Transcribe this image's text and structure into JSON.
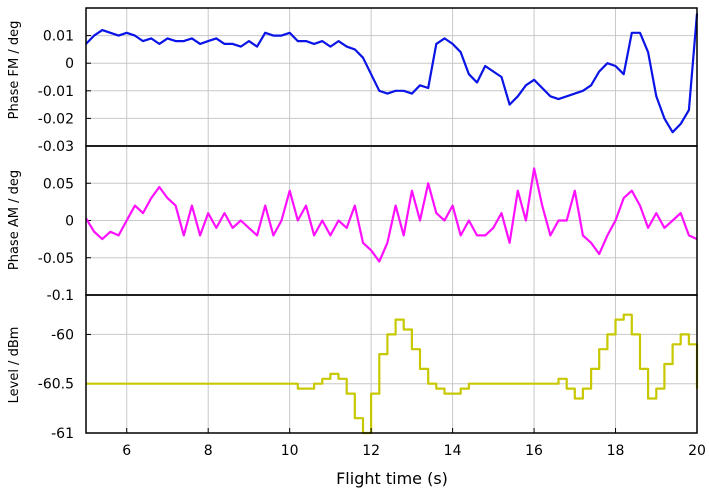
{
  "chart_data": {
    "type": "line",
    "x_label": "Flight time (s)",
    "x_range": [
      5,
      20
    ],
    "x_ticks": [
      "6",
      "8",
      "10",
      "12",
      "14",
      "16",
      "18",
      "20"
    ],
    "grid": true,
    "panels": [
      {
        "ylabel": "Phase FM / deg",
        "ylim": [
          -0.03,
          0.02
        ],
        "yticks": [
          "0.01",
          "0",
          "-0.01",
          "-0.02",
          "-0.03"
        ],
        "color": "#0a14e6",
        "series": {
          "x": [
            5.0,
            5.2,
            5.4,
            5.6,
            5.8,
            6.0,
            6.2,
            6.4,
            6.6,
            6.8,
            7.0,
            7.2,
            7.4,
            7.6,
            7.8,
            8.0,
            8.2,
            8.4,
            8.6,
            8.8,
            9.0,
            9.2,
            9.4,
            9.6,
            9.8,
            10.0,
            10.2,
            10.4,
            10.6,
            10.8,
            11.0,
            11.2,
            11.4,
            11.6,
            11.8,
            12.0,
            12.2,
            12.4,
            12.6,
            12.8,
            13.0,
            13.2,
            13.4,
            13.6,
            13.8,
            14.0,
            14.2,
            14.4,
            14.6,
            14.8,
            15.0,
            15.2,
            15.4,
            15.6,
            15.8,
            16.0,
            16.2,
            16.4,
            16.6,
            16.8,
            17.0,
            17.2,
            17.4,
            17.6,
            17.8,
            18.0,
            18.2,
            18.4,
            18.6,
            18.8,
            19.0,
            19.2,
            19.4,
            19.6,
            19.8,
            20.0
          ],
          "y": [
            0.007,
            0.01,
            0.012,
            0.011,
            0.01,
            0.011,
            0.01,
            0.008,
            0.009,
            0.007,
            0.009,
            0.008,
            0.008,
            0.009,
            0.007,
            0.008,
            0.009,
            0.007,
            0.007,
            0.006,
            0.008,
            0.006,
            0.011,
            0.01,
            0.01,
            0.011,
            0.008,
            0.008,
            0.007,
            0.008,
            0.006,
            0.008,
            0.006,
            0.005,
            0.002,
            -0.004,
            -0.01,
            -0.011,
            -0.01,
            -0.01,
            -0.011,
            -0.008,
            -0.009,
            0.007,
            0.009,
            0.007,
            0.004,
            -0.004,
            -0.007,
            -0.001,
            -0.003,
            -0.005,
            -0.015,
            -0.012,
            -0.008,
            -0.006,
            -0.009,
            -0.012,
            -0.013,
            -0.012,
            -0.011,
            -0.01,
            -0.008,
            -0.003,
            0.0,
            -0.001,
            -0.004,
            0.011,
            0.011,
            0.004,
            -0.012,
            -0.02,
            -0.025,
            -0.022,
            -0.017,
            0.018
          ],
          "name": ""
        }
      },
      {
        "ylabel": "Phase AM / deg",
        "ylim": [
          -0.1,
          0.1
        ],
        "yticks": [
          "0.05",
          "0",
          "-0.05",
          "-0.1"
        ],
        "color": "#ff10ff",
        "series": {
          "x": [
            5.0,
            5.2,
            5.4,
            5.6,
            5.8,
            6.0,
            6.2,
            6.4,
            6.6,
            6.8,
            7.0,
            7.2,
            7.4,
            7.6,
            7.8,
            8.0,
            8.2,
            8.4,
            8.6,
            8.8,
            9.0,
            9.2,
            9.4,
            9.6,
            9.8,
            10.0,
            10.2,
            10.4,
            10.6,
            10.8,
            11.0,
            11.2,
            11.4,
            11.6,
            11.8,
            12.0,
            12.2,
            12.4,
            12.6,
            12.8,
            13.0,
            13.2,
            13.4,
            13.6,
            13.8,
            14.0,
            14.2,
            14.4,
            14.6,
            14.8,
            15.0,
            15.2,
            15.4,
            15.6,
            15.8,
            16.0,
            16.2,
            16.4,
            16.6,
            16.8,
            17.0,
            17.2,
            17.4,
            17.6,
            17.8,
            18.0,
            18.2,
            18.4,
            18.6,
            18.8,
            19.0,
            19.2,
            19.4,
            19.6,
            19.8,
            20.0
          ],
          "y": [
            0.003,
            -0.015,
            -0.025,
            -0.015,
            -0.02,
            0.0,
            0.02,
            0.01,
            0.03,
            0.045,
            0.03,
            0.02,
            -0.02,
            0.02,
            -0.02,
            0.01,
            -0.01,
            0.01,
            -0.01,
            0.0,
            -0.01,
            -0.02,
            0.02,
            -0.02,
            0.0,
            0.04,
            0.0,
            0.02,
            -0.02,
            0.0,
            -0.02,
            0.0,
            -0.01,
            0.02,
            -0.03,
            -0.04,
            -0.055,
            -0.03,
            0.02,
            -0.02,
            0.04,
            0.0,
            0.05,
            0.01,
            0.0,
            0.02,
            -0.02,
            0.0,
            -0.02,
            -0.02,
            -0.01,
            0.01,
            -0.03,
            0.04,
            0.0,
            0.07,
            0.02,
            -0.02,
            0.0,
            0.0,
            0.04,
            -0.02,
            -0.03,
            -0.045,
            -0.02,
            0.0,
            0.03,
            0.04,
            0.02,
            -0.01,
            0.01,
            -0.01,
            0.0,
            0.01,
            -0.02,
            -0.025
          ],
          "name": ""
        }
      },
      {
        "ylabel": "Level / dBm",
        "ylim": [
          -61,
          -59.6
        ],
        "yticks": [
          "-60",
          "-60.5",
          "-61"
        ],
        "color": "#c8c800",
        "series": {
          "x": [
            5.0,
            10.0,
            10.2,
            10.6,
            10.8,
            11.0,
            11.2,
            11.4,
            11.6,
            11.8,
            12.0,
            12.2,
            12.4,
            12.6,
            12.8,
            13.0,
            13.2,
            13.4,
            13.6,
            13.8,
            14.0,
            14.2,
            14.4,
            16.4,
            16.6,
            16.8,
            17.0,
            17.2,
            17.4,
            17.6,
            17.8,
            18.0,
            18.2,
            18.4,
            18.6,
            18.8,
            19.0,
            19.2,
            19.4,
            19.6,
            19.8,
            20.0
          ],
          "y": [
            -60.5,
            -60.5,
            -60.55,
            -60.5,
            -60.45,
            -60.4,
            -60.45,
            -60.6,
            -60.85,
            -61.0,
            -60.6,
            -60.2,
            -60.0,
            -59.85,
            -59.95,
            -60.15,
            -60.35,
            -60.5,
            -60.55,
            -60.6,
            -60.6,
            -60.55,
            -60.5,
            -60.5,
            -60.45,
            -60.55,
            -60.65,
            -60.55,
            -60.35,
            -60.15,
            -60.0,
            -59.85,
            -59.8,
            -60.0,
            -60.35,
            -60.65,
            -60.55,
            -60.3,
            -60.1,
            -60.0,
            -60.1,
            -60.55
          ],
          "name": ""
        }
      }
    ]
  }
}
